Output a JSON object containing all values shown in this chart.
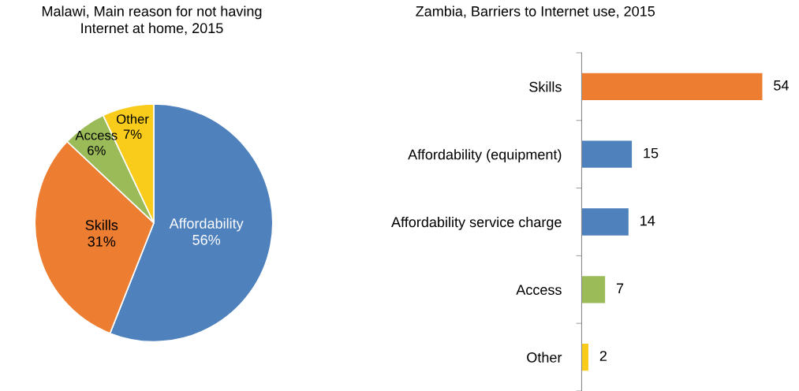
{
  "chart_data": [
    {
      "type": "pie",
      "title": "Malawi, Main reason for not having\nInternet at home, 2015",
      "categories": [
        "Affordability",
        "Skills",
        "Access",
        "Other"
      ],
      "values": [
        56,
        31,
        6,
        7
      ],
      "value_labels": [
        "56%",
        "31%",
        "6%",
        "7%"
      ],
      "colors": [
        "#4f81bd",
        "#ed7d31",
        "#9bbb59",
        "#f9cc1c"
      ],
      "legend": false
    },
    {
      "type": "bar",
      "orientation": "horizontal",
      "title": "Zambia, Barriers to Internet use, 2015",
      "categories": [
        "Skills",
        "Affordability (equipment)",
        "Affordability service charge",
        "Access",
        "Other"
      ],
      "values": [
        54,
        15,
        14,
        7,
        2
      ],
      "colors": [
        "#ed7d31",
        "#4f81bd",
        "#4f81bd",
        "#9bbb59",
        "#f9cc1c"
      ],
      "data_labels": true,
      "grid": false,
      "legend": false
    }
  ]
}
